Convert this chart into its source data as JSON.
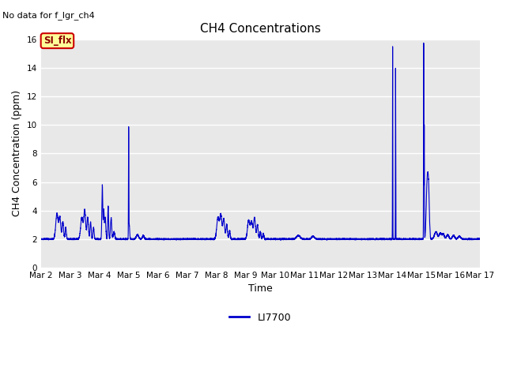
{
  "title": "CH4 Concentrations",
  "subtitle": "No data for f_lgr_ch4",
  "xlabel": "Time",
  "ylabel": "CH4 Concentration (ppm)",
  "ylim": [
    0,
    16
  ],
  "yticks": [
    0,
    2,
    4,
    6,
    8,
    10,
    12,
    14,
    16
  ],
  "line_color": "#0000cc",
  "line_width": 0.8,
  "legend_label": "LI7700",
  "annotation_label": "SI_flx",
  "annotation_bg": "#ffff99",
  "annotation_border": "#cc0000",
  "annotation_text_color": "#8b0000",
  "fig_bg": "#ffffff",
  "plot_bg": "#e8e8e8",
  "grid_color": "#ffffff",
  "x_tick_labels": [
    "Mar 2",
    "Mar 3",
    "Mar 4",
    "Mar 5",
    "Mar 6",
    "Mar 7",
    "Mar 8",
    "Mar 9",
    "Mar 10",
    "Mar 11",
    "Mar 12",
    "Mar 13",
    "Mar 14",
    "Mar 15",
    "Mar 16",
    "Mar 17"
  ],
  "tick_fontsize": 7.5,
  "label_fontsize": 9,
  "title_fontsize": 11
}
